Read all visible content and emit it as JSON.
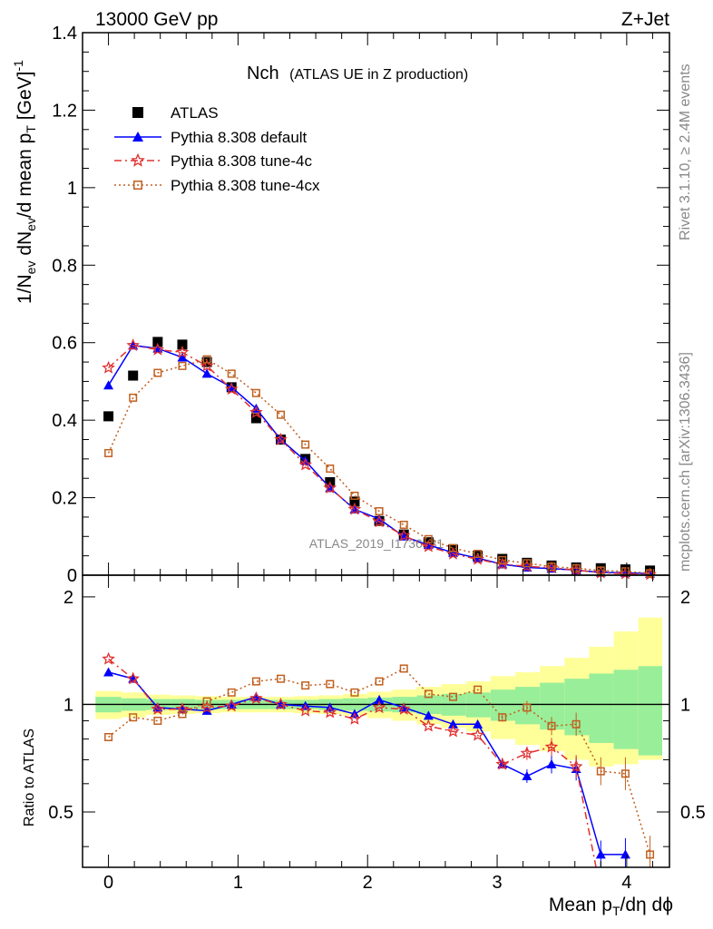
{
  "header": {
    "left": "13000 GeV pp",
    "right": "Z+Jet"
  },
  "side": {
    "rivet": "Rivet 3.1.10, ≥ 2.4M events",
    "mcplots": "mcplots.cern.ch [arXiv:1306.3436]"
  },
  "chart_data": [
    {
      "type": "scatter",
      "title": "Nch",
      "subtitle": "(ATLAS UE in Z production)",
      "watermark": "ATLAS_2019_I1736531",
      "ylabel": "1/Nev dNev/d mean pT [GeV]^-1",
      "xlabel": "Mean pT/dη dϕ",
      "xlim": [
        -0.2,
        4.33
      ],
      "ylim": [
        0,
        1.4
      ],
      "grid": false,
      "legend_position": "top-left",
      "x_ticks": [
        "0",
        "1",
        "2",
        "3",
        "4"
      ],
      "y_ticks": [
        "0",
        "0.2",
        "0.4",
        "0.6",
        "0.8",
        "1",
        "1.2",
        "1.4"
      ],
      "x": [
        0.0,
        0.19,
        0.38,
        0.57,
        0.76,
        0.95,
        1.14,
        1.33,
        1.52,
        1.71,
        1.9,
        2.09,
        2.28,
        2.47,
        2.66,
        2.85,
        3.04,
        3.23,
        3.42,
        3.61,
        3.8,
        3.99,
        4.18
      ],
      "series": [
        {
          "name": "ATLAS",
          "color": "#000000",
          "marker": "square",
          "values": [
            0.41,
            0.515,
            0.602,
            0.595,
            0.55,
            0.485,
            0.405,
            0.35,
            0.3,
            0.24,
            0.19,
            0.14,
            0.105,
            0.085,
            0.066,
            0.05,
            0.042,
            0.032,
            0.025,
            0.02,
            0.018,
            0.015,
            0.012
          ]
        },
        {
          "name": "Pythia 8.308 default",
          "color": "#0000ff",
          "marker": "triangle",
          "line": "solid",
          "values": [
            0.49,
            0.593,
            0.585,
            0.562,
            0.52,
            0.485,
            0.43,
            0.35,
            0.295,
            0.225,
            0.17,
            0.145,
            0.1,
            0.078,
            0.058,
            0.044,
            0.028,
            0.02,
            0.017,
            0.013,
            0.007,
            0.006,
            0.004
          ]
        },
        {
          "name": "Pythia 8.308 tune-4c",
          "color": "#e03030",
          "marker": "star",
          "line": "dashdot",
          "values": [
            0.535,
            0.593,
            0.582,
            0.575,
            0.54,
            0.48,
            0.42,
            0.35,
            0.285,
            0.225,
            0.17,
            0.138,
            0.102,
            0.074,
            0.055,
            0.041,
            0.028,
            0.023,
            0.019,
            0.013,
            0.006,
            0.004,
            0.002
          ]
        },
        {
          "name": "Pythia 8.308 tune-4cx",
          "color": "#c06020",
          "marker": "open-square",
          "line": "dotted",
          "values": [
            0.315,
            0.458,
            0.522,
            0.54,
            0.557,
            0.52,
            0.47,
            0.414,
            0.337,
            0.275,
            0.205,
            0.165,
            0.13,
            0.093,
            0.07,
            0.055,
            0.039,
            0.031,
            0.022,
            0.018,
            0.012,
            0.01,
            0.005
          ]
        }
      ]
    },
    {
      "type": "line",
      "ylabel": "Ratio to ATLAS",
      "xlabel": "Mean pT/dη dϕ",
      "xlim": [
        -0.2,
        4.33
      ],
      "ylim": [
        0.35,
        2.3
      ],
      "grid": false,
      "reference_line": 1,
      "y_ticks": [
        "0.5",
        "1",
        "2"
      ],
      "band_edges": [
        -0.1,
        0.1,
        0.29,
        0.48,
        0.67,
        0.86,
        1.05,
        1.24,
        1.43,
        1.62,
        1.81,
        2.0,
        2.19,
        2.38,
        2.57,
        2.76,
        2.95,
        3.14,
        3.33,
        3.52,
        3.71,
        3.9,
        4.09,
        4.3
      ],
      "band_stat_low": [
        0.95,
        0.96,
        0.965,
        0.965,
        0.97,
        0.97,
        0.97,
        0.97,
        0.97,
        0.965,
        0.96,
        0.955,
        0.95,
        0.94,
        0.93,
        0.92,
        0.9,
        0.88,
        0.85,
        0.82,
        0.78,
        0.75,
        0.72
      ],
      "band_stat_high": [
        1.05,
        1.04,
        1.035,
        1.035,
        1.03,
        1.03,
        1.03,
        1.03,
        1.03,
        1.035,
        1.04,
        1.045,
        1.05,
        1.06,
        1.07,
        1.08,
        1.1,
        1.12,
        1.15,
        1.18,
        1.22,
        1.25,
        1.28
      ],
      "band_total_low": [
        0.91,
        0.92,
        0.935,
        0.94,
        0.945,
        0.95,
        0.95,
        0.95,
        0.945,
        0.94,
        0.93,
        0.915,
        0.9,
        0.88,
        0.86,
        0.84,
        0.8,
        0.77,
        0.74,
        0.7,
        0.67,
        0.68,
        0.7
      ],
      "band_total_high": [
        1.09,
        1.08,
        1.065,
        1.06,
        1.055,
        1.05,
        1.05,
        1.05,
        1.055,
        1.06,
        1.07,
        1.085,
        1.1,
        1.12,
        1.14,
        1.16,
        1.2,
        1.23,
        1.28,
        1.35,
        1.45,
        1.6,
        1.75
      ],
      "x": [
        0.0,
        0.19,
        0.38,
        0.57,
        0.76,
        0.95,
        1.14,
        1.33,
        1.52,
        1.71,
        1.9,
        2.09,
        2.28,
        2.47,
        2.66,
        2.85,
        3.04,
        3.23,
        3.42,
        3.61,
        3.8,
        3.99,
        4.18
      ],
      "series": [
        {
          "name": "Pythia 8.308 default",
          "color": "#0000ff",
          "marker": "triangle",
          "line": "solid",
          "values": [
            1.23,
            1.18,
            0.98,
            0.97,
            0.96,
            1.0,
            1.05,
            1.0,
            0.99,
            0.98,
            0.94,
            1.03,
            0.98,
            0.93,
            0.88,
            0.88,
            0.68,
            0.63,
            0.68,
            0.66,
            0.38,
            0.38,
            null
          ]
        },
        {
          "name": "Pythia 8.308 tune-4c",
          "color": "#e03030",
          "marker": "star",
          "line": "dashdot",
          "values": [
            1.34,
            1.18,
            0.97,
            0.97,
            0.98,
            0.99,
            1.04,
            1.0,
            0.96,
            0.95,
            0.91,
            0.98,
            0.97,
            0.87,
            0.84,
            0.82,
            0.68,
            0.73,
            0.76,
            0.67,
            0.3,
            0.28,
            null
          ]
        },
        {
          "name": "Pythia 8.308 tune-4cx",
          "color": "#c06020",
          "marker": "open-square",
          "line": "dotted",
          "values": [
            0.81,
            0.92,
            0.9,
            0.94,
            1.02,
            1.08,
            1.16,
            1.18,
            1.13,
            1.14,
            1.08,
            1.16,
            1.26,
            1.07,
            1.05,
            1.1,
            0.92,
            0.98,
            0.87,
            0.88,
            0.65,
            0.64,
            0.38
          ]
        }
      ]
    }
  ]
}
